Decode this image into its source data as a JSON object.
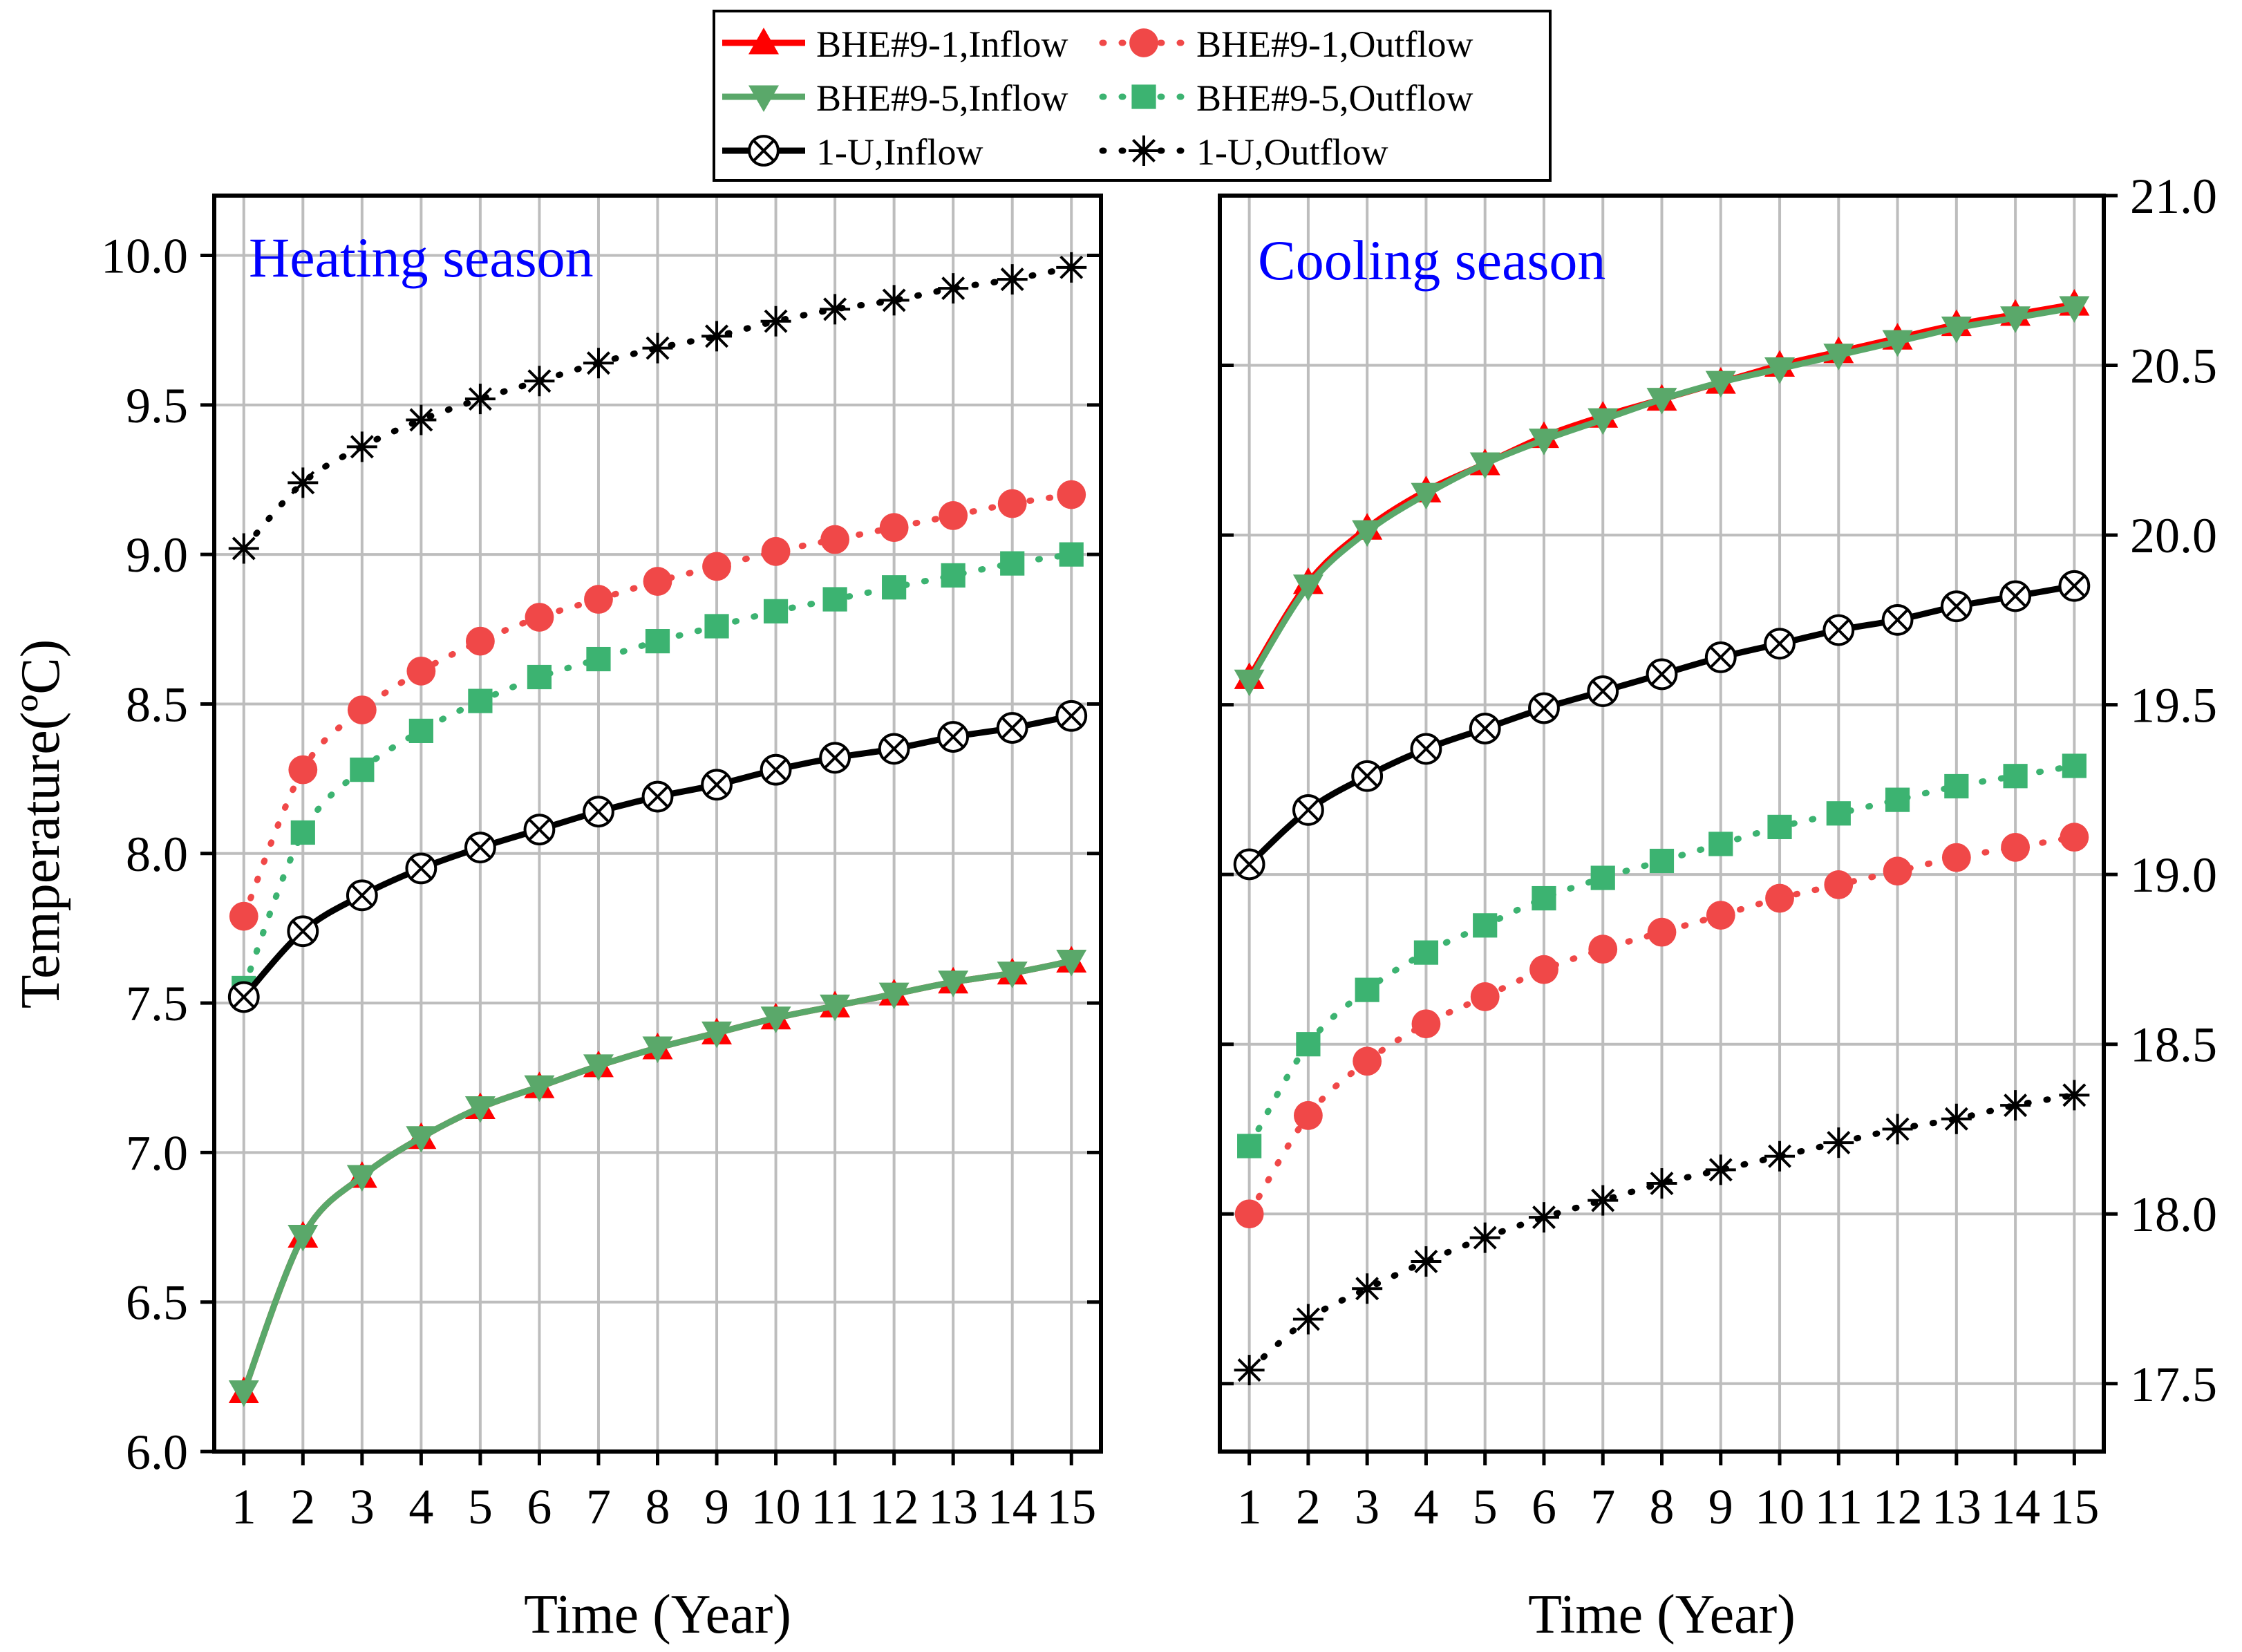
{
  "colors": {
    "bhe1": "#ff0000",
    "bhe1_out": "#f04848",
    "bhe5": "#5aa86a",
    "bhe5_out": "#3cb371",
    "u": "#000000",
    "title": "#0000ff"
  },
  "chart_data": [
    {
      "type": "line",
      "title": "Heating season",
      "xlabel": "Time (Year)",
      "ylabel": "Temperature(ºC)",
      "x": [
        1,
        2,
        3,
        4,
        5,
        6,
        7,
        8,
        9,
        10,
        11,
        12,
        13,
        14,
        15
      ],
      "xlim": [
        0.5,
        15.5
      ],
      "ylim": [
        6.0,
        10.2
      ],
      "yticks": [
        "6.0",
        "6.5",
        "7.0",
        "7.5",
        "8.0",
        "8.5",
        "9.0",
        "9.5",
        "10.0"
      ],
      "grid": true,
      "series": [
        {
          "name": "BHE#9-1,Inflow",
          "values": [
            6.2,
            6.72,
            6.92,
            7.05,
            7.15,
            7.22,
            7.29,
            7.35,
            7.4,
            7.45,
            7.49,
            7.53,
            7.57,
            7.6,
            7.64
          ]
        },
        {
          "name": "BHE#9-1,Outflow",
          "values": [
            7.79,
            8.28,
            8.48,
            8.61,
            8.71,
            8.79,
            8.85,
            8.91,
            8.96,
            9.01,
            9.05,
            9.09,
            9.13,
            9.17,
            9.2
          ]
        },
        {
          "name": "BHE#9-5,Inflow",
          "values": [
            6.2,
            6.72,
            6.92,
            7.05,
            7.15,
            7.22,
            7.29,
            7.35,
            7.4,
            7.45,
            7.49,
            7.53,
            7.57,
            7.6,
            7.64
          ]
        },
        {
          "name": "BHE#9-5,Outflow",
          "values": [
            7.55,
            8.07,
            8.28,
            8.41,
            8.51,
            8.59,
            8.65,
            8.71,
            8.76,
            8.81,
            8.85,
            8.89,
            8.93,
            8.97,
            9.0
          ]
        },
        {
          "name": "1-U,Inflow",
          "values": [
            7.52,
            7.74,
            7.86,
            7.95,
            8.02,
            8.08,
            8.14,
            8.19,
            8.23,
            8.28,
            8.32,
            8.35,
            8.39,
            8.42,
            8.46
          ]
        },
        {
          "name": "1-U,Outflow",
          "values": [
            9.02,
            9.24,
            9.36,
            9.45,
            9.52,
            9.58,
            9.64,
            9.69,
            9.73,
            9.78,
            9.82,
            9.85,
            9.89,
            9.92,
            9.96
          ]
        }
      ]
    },
    {
      "type": "line",
      "title": "Cooling season",
      "xlabel": "Time (Year)",
      "ylabel": "",
      "x": [
        1,
        2,
        3,
        4,
        5,
        6,
        7,
        8,
        9,
        10,
        11,
        12,
        13,
        14,
        15
      ],
      "xlim": [
        0.5,
        15.5
      ],
      "ylim": [
        17.3,
        21.0
      ],
      "yticks": [
        "17.5",
        "18.0",
        "18.5",
        "19.0",
        "19.5",
        "20.0",
        "20.5",
        "21.0"
      ],
      "grid": true,
      "series": [
        {
          "name": "BHE#9-1,Inflow",
          "values": [
            19.58,
            19.86,
            20.02,
            20.13,
            20.21,
            20.29,
            20.35,
            20.4,
            20.45,
            20.5,
            20.54,
            20.58,
            20.62,
            20.65,
            20.68
          ]
        },
        {
          "name": "BHE#9-1,Outflow",
          "values": [
            18.0,
            18.29,
            18.45,
            18.56,
            18.64,
            18.72,
            18.78,
            18.83,
            18.88,
            18.93,
            18.97,
            19.01,
            19.05,
            19.08,
            19.11
          ]
        },
        {
          "name": "BHE#9-5,Inflow",
          "values": [
            19.57,
            19.85,
            20.01,
            20.12,
            20.21,
            20.28,
            20.34,
            20.4,
            20.45,
            20.49,
            20.53,
            20.57,
            20.61,
            20.64,
            20.67
          ]
        },
        {
          "name": "BHE#9-5,Outflow",
          "values": [
            18.2,
            18.5,
            18.66,
            18.77,
            18.85,
            18.93,
            18.99,
            19.04,
            19.09,
            19.14,
            19.18,
            19.22,
            19.26,
            19.29,
            19.32
          ]
        },
        {
          "name": "1-U,Inflow",
          "values": [
            19.03,
            19.19,
            19.29,
            19.37,
            19.43,
            19.49,
            19.54,
            19.59,
            19.64,
            19.68,
            19.72,
            19.75,
            19.79,
            19.82,
            19.85
          ]
        },
        {
          "name": "1-U,Outflow",
          "values": [
            17.54,
            17.69,
            17.78,
            17.86,
            17.93,
            17.99,
            18.04,
            18.09,
            18.13,
            18.17,
            18.21,
            18.25,
            18.28,
            18.32,
            18.35
          ]
        }
      ]
    }
  ],
  "legend": {
    "position": "top-center",
    "items": [
      {
        "label": "BHE#9-1,Inflow",
        "style": "solid",
        "marker": "triangle-up",
        "color": "#ff0000"
      },
      {
        "label": "BHE#9-1,Outflow",
        "style": "dotted",
        "marker": "circle",
        "color": "#f04848"
      },
      {
        "label": "BHE#9-5,Inflow",
        "style": "solid",
        "marker": "triangle-down",
        "color": "#5aa86a"
      },
      {
        "label": "BHE#9-5,Outflow",
        "style": "dotted",
        "marker": "square",
        "color": "#3cb371"
      },
      {
        "label": "1-U,Inflow",
        "style": "solid",
        "marker": "circle-x",
        "color": "#000000"
      },
      {
        "label": "1-U,Outflow",
        "style": "dotted",
        "marker": "asterisk",
        "color": "#000000"
      }
    ]
  }
}
